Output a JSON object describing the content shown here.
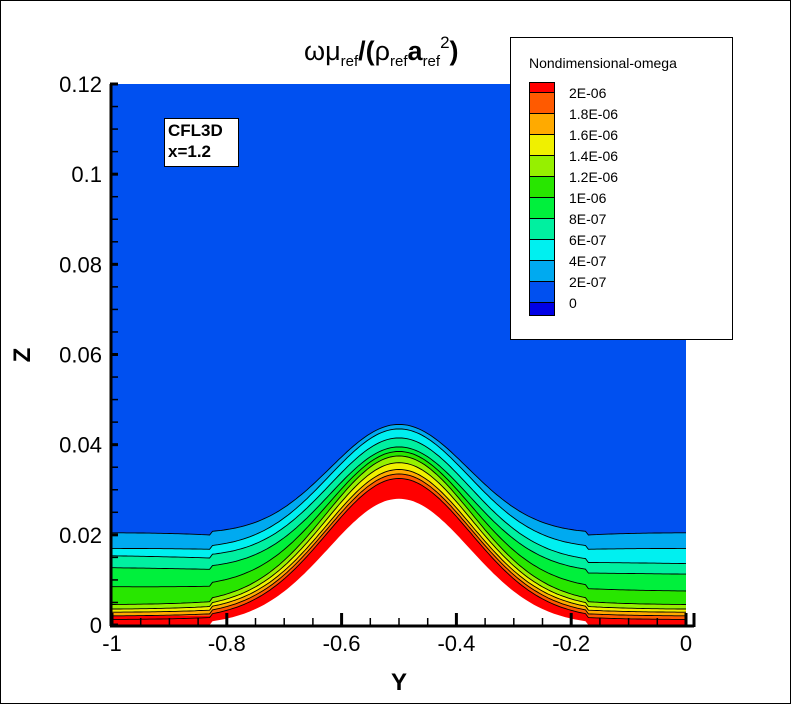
{
  "chart_data": {
    "type": "heatmap",
    "subtype": "filled-contour",
    "title": "ωμ_ref/(ρ_ref a_ref^2)",
    "xlabel": "Y",
    "ylabel": "Z",
    "xlim": [
      -1,
      0
    ],
    "ylim": [
      0,
      0.12
    ],
    "xticks": [
      -1,
      -0.8,
      -0.6,
      -0.4,
      -0.2,
      0
    ],
    "xtick_labels": [
      "-1",
      "-0.8",
      "-0.6",
      "-0.4",
      "-0.2",
      "0"
    ],
    "yticks": [
      0,
      0.02,
      0.04,
      0.06,
      0.08,
      0.1,
      0.12
    ],
    "ytick_labels": [
      "0",
      "0.02",
      "0.04",
      "0.06",
      "0.08",
      "0.1",
      "0.12"
    ],
    "grid": false,
    "legend_position": "upper right",
    "annotation": [
      "CFL3D",
      "x=1.2"
    ],
    "colorbar": {
      "title": "Nondimensional-omega",
      "levels": [
        0,
        2e-07,
        4e-07,
        6e-07,
        8e-07,
        1e-06,
        1.2e-06,
        1.4e-06,
        1.6e-06,
        1.8e-06,
        2e-06
      ],
      "labels": [
        "2E-06",
        "1.8E-06",
        "1.6E-06",
        "1.4E-06",
        "1.2E-06",
        "1E-06",
        "8E-07",
        "6E-07",
        "4E-07",
        "2E-07",
        "0"
      ],
      "colors_top_to_bottom": [
        "#ff0000",
        "#ff5a00",
        "#ffaa00",
        "#f0f000",
        "#96f000",
        "#28e600",
        "#00f03c",
        "#00f0a0",
        "#00f0f0",
        "#00aaf0",
        "#0050f0",
        "#0000e6"
      ]
    },
    "features": {
      "wall_bump": {
        "center_y": -0.5,
        "peak_z": 0.028,
        "half_width": 0.22
      },
      "freestream_value_band": "2E-07 to 4E-07 (upper region)",
      "boundary_layer_edge_z_far": 0.02,
      "boundary_layer_edge_z_peak": 0.044
    }
  },
  "legend": {
    "title": "Nondimensional-omega",
    "items": [
      "2E-06",
      "1.8E-06",
      "1.6E-06",
      "1.4E-06",
      "1.2E-06",
      "1E-06",
      "8E-07",
      "6E-07",
      "4E-07",
      "2E-07",
      "0"
    ]
  },
  "annotation": {
    "line1": "CFL3D",
    "line2": "x=1.2"
  },
  "axes": {
    "x_title": "Y",
    "y_title": "Z",
    "x_labels": [
      "-1",
      "-0.8",
      "-0.6",
      "-0.4",
      "-0.2",
      "0"
    ],
    "y_labels": [
      "0",
      "0.02",
      "0.04",
      "0.06",
      "0.08",
      "0.1",
      "0.12"
    ]
  },
  "title": {
    "omega_mu": "ωμ",
    "ref": "ref",
    "slash_paren": "/(",
    "rho": "ρ",
    "a": "a",
    "sq": "2",
    "close": ")"
  }
}
